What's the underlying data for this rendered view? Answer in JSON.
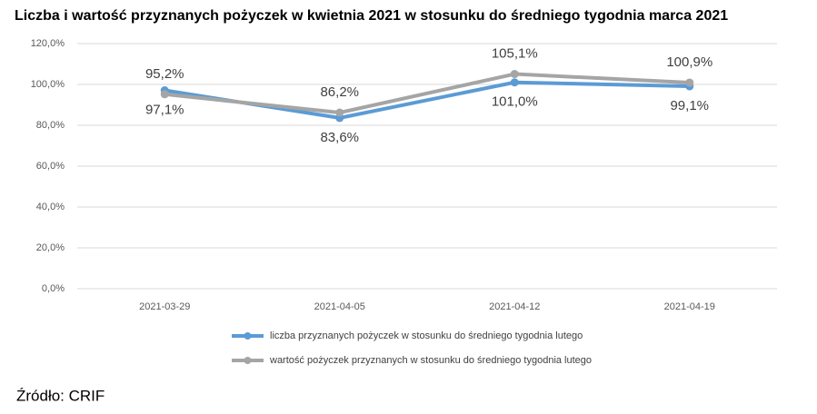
{
  "chart_data": {
    "type": "line",
    "title": "Liczba i wartość przyznanych pożyczek w kwietnia 2021 w stosunku do średniego tygodnia marca 2021",
    "categories": [
      "2021-03-29",
      "2021-04-05",
      "2021-04-12",
      "2021-04-19"
    ],
    "series": [
      {
        "name": "liczba przyznanych pożyczek w stosunku do średniego tygodnia lutego",
        "color": "#5b9bd5",
        "values": [
          97.1,
          83.6,
          101.0,
          99.1
        ],
        "value_labels": [
          "97,1%",
          "83,6%",
          "101,0%",
          "99,1%"
        ],
        "label_position": "below"
      },
      {
        "name": "wartość pożyczek przyznanych w stosunku do średniego tygodnia lutego",
        "color": "#a5a5a5",
        "values": [
          95.2,
          86.2,
          105.1,
          100.9
        ],
        "value_labels": [
          "95,2%",
          "86,2%",
          "105,1%",
          "100,9%"
        ],
        "label_position": "above"
      }
    ],
    "ylim": [
      0,
      120
    ],
    "yticks": [
      {
        "value": 0,
        "label": "0,0%"
      },
      {
        "value": 20,
        "label": "20,0%"
      },
      {
        "value": 40,
        "label": "40,0%"
      },
      {
        "value": 60,
        "label": "60,0%"
      },
      {
        "value": 80,
        "label": "80,0%"
      },
      {
        "value": 100,
        "label": "100,0%"
      },
      {
        "value": 120,
        "label": "120,0%"
      }
    ],
    "grid": true,
    "legend": "bottom"
  },
  "source": "Źródło: CRIF"
}
